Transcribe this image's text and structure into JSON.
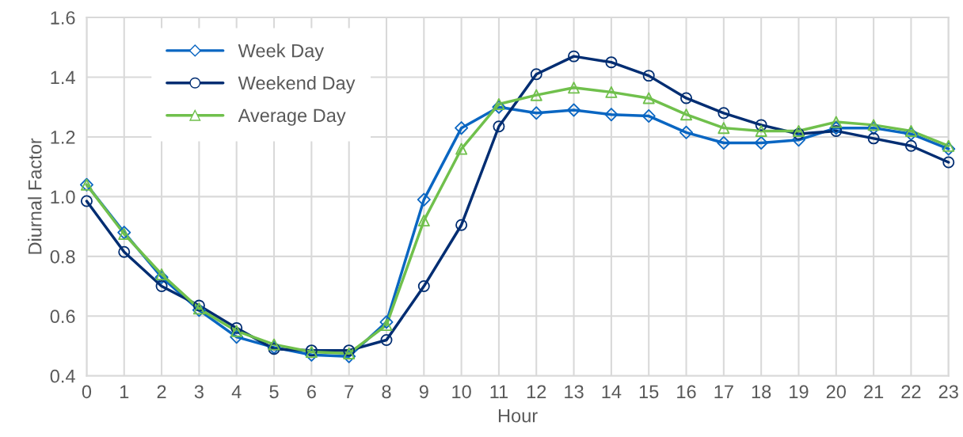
{
  "chart_data": {
    "type": "line",
    "xlabel": "Hour",
    "ylabel": "Diurnal Factor",
    "x": [
      0,
      1,
      2,
      3,
      4,
      5,
      6,
      7,
      8,
      9,
      10,
      11,
      12,
      13,
      14,
      15,
      16,
      17,
      18,
      19,
      20,
      21,
      22,
      23
    ],
    "xlim": [
      0,
      23
    ],
    "xticks": [
      0,
      1,
      2,
      3,
      4,
      5,
      6,
      7,
      8,
      9,
      10,
      11,
      12,
      13,
      14,
      15,
      16,
      17,
      18,
      19,
      20,
      21,
      22,
      23
    ],
    "ylim": [
      0.4,
      1.6
    ],
    "yticks": [
      {
        "value": 0.4,
        "label": "0.4"
      },
      {
        "value": 0.6,
        "label": "0.6"
      },
      {
        "value": 0.8,
        "label": "0.8"
      },
      {
        "value": 1.0,
        "label": "1.0"
      },
      {
        "value": 1.2,
        "label": "1.2"
      },
      {
        "value": 1.4,
        "label": "1.4"
      },
      {
        "value": 1.6,
        "label": "1.6"
      }
    ],
    "grid": true,
    "legend": "top left",
    "line_style": "solid",
    "series": [
      {
        "name": "Week Day",
        "color": "#0a66c2",
        "marker": "diamond",
        "values": [
          1.04,
          0.88,
          0.73,
          0.62,
          0.53,
          0.495,
          0.47,
          0.465,
          0.58,
          0.99,
          1.23,
          1.3,
          1.28,
          1.29,
          1.275,
          1.27,
          1.215,
          1.18,
          1.18,
          1.19,
          1.23,
          1.23,
          1.21,
          1.16
        ]
      },
      {
        "name": "Weekend Day",
        "color": "#002d72",
        "marker": "circle",
        "values": [
          0.985,
          0.815,
          0.7,
          0.635,
          0.56,
          0.49,
          0.485,
          0.485,
          0.52,
          0.7,
          0.905,
          1.235,
          1.41,
          1.47,
          1.45,
          1.405,
          1.33,
          1.28,
          1.24,
          1.21,
          1.22,
          1.195,
          1.17,
          1.115
        ]
      },
      {
        "name": "Average Day",
        "color": "#70c04c",
        "marker": "triangle",
        "values": [
          1.04,
          0.875,
          0.74,
          0.625,
          0.55,
          0.505,
          0.48,
          0.475,
          0.57,
          0.92,
          1.16,
          1.31,
          1.34,
          1.365,
          1.35,
          1.33,
          1.275,
          1.23,
          1.22,
          1.22,
          1.25,
          1.24,
          1.22,
          1.17
        ]
      }
    ]
  }
}
